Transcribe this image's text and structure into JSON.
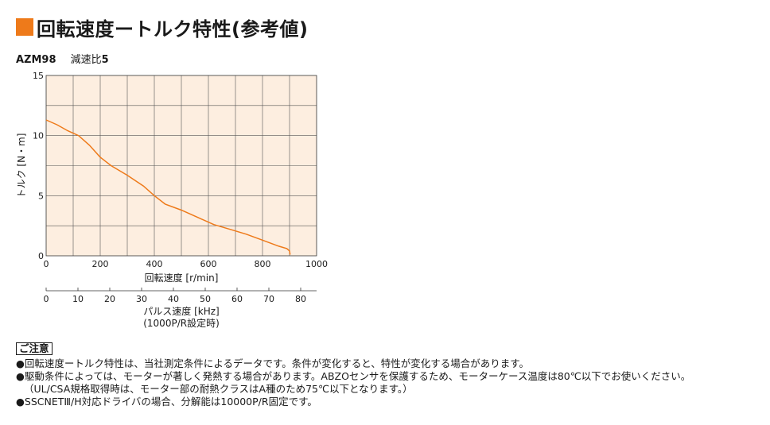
{
  "page": {
    "title": "回転速度ートルク特性(参考値)",
    "accent_color": "#ee7a1a",
    "model": "AZM98",
    "ratio_label": "減速比",
    "ratio_value": "5"
  },
  "chart_data": {
    "type": "line",
    "title": "",
    "xlabel": "回転速度 [r/min]",
    "ylabel": "トルク [N・m]",
    "xlim": [
      0,
      1000
    ],
    "ylim": [
      0,
      15
    ],
    "x_ticks": [
      "0",
      "200",
      "400",
      "600",
      "800",
      "1000"
    ],
    "y_ticks": [
      "0",
      "5",
      "10",
      "15"
    ],
    "secondary_x": {
      "label": "パルス速度 [kHz]",
      "sublabel": "(1000P/R設定時)",
      "lim": [
        0,
        85
      ],
      "ticks": [
        "0",
        "10",
        "20",
        "30",
        "40",
        "50",
        "60",
        "70",
        "80"
      ]
    },
    "grid": true,
    "plot_background": "#fdeee0",
    "line_color": "#ee7a1a",
    "series": [
      {
        "x": [
          0,
          40,
          80,
          120,
          160,
          200,
          240,
          300,
          360,
          400,
          440,
          500,
          560,
          620,
          680,
          740,
          800,
          860,
          890,
          900,
          902
        ],
        "y": [
          11.3,
          10.9,
          10.4,
          10.0,
          9.2,
          8.2,
          7.5,
          6.7,
          5.8,
          5.0,
          4.3,
          3.8,
          3.2,
          2.6,
          2.2,
          1.8,
          1.3,
          0.8,
          0.6,
          0.4,
          0.1
        ]
      }
    ]
  },
  "notes": {
    "heading": "ご注意",
    "lines": [
      "●回転速度ートルク特性は、当社測定条件によるデータです。条件が変化すると、特性が変化する場合があります。",
      "●駆動条件によっては、モーターが著しく発熱する場合があります。ABZOセンサを保護するため、モーターケース温度は80℃以下でお使いください。",
      "（UL/CSA規格取得時は、モーター部の耐熱クラスはA種のため75℃以下となります。）",
      "●SSCNETⅢ/H対応ドライバの場合、分解能は10000P/R固定です。"
    ]
  }
}
